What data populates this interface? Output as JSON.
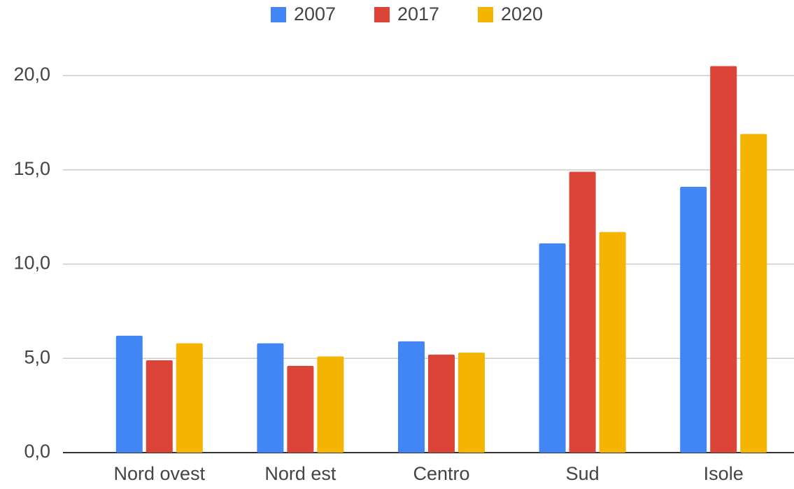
{
  "chart_data": {
    "type": "bar",
    "categories": [
      "Nord ovest",
      "Nord est",
      "Centro",
      "Sud",
      "Isole"
    ],
    "series": [
      {
        "name": "2007",
        "color": "#4285f4",
        "values": [
          6.2,
          5.8,
          5.9,
          11.1,
          14.1
        ]
      },
      {
        "name": "2017",
        "color": "#db4437",
        "values": [
          4.9,
          4.6,
          5.2,
          14.9,
          20.5
        ]
      },
      {
        "name": "2020",
        "color": "#f4b400",
        "values": [
          5.8,
          5.1,
          5.3,
          11.7,
          16.9
        ]
      }
    ],
    "ylim": [
      0,
      21
    ],
    "yticks": [
      {
        "value": 0,
        "label": "0,0"
      },
      {
        "value": 5,
        "label": "5,0"
      },
      {
        "value": 10,
        "label": "10,0"
      },
      {
        "value": 15,
        "label": "15,0"
      },
      {
        "value": 20,
        "label": "20,0"
      }
    ],
    "grid": true,
    "legend": "top"
  }
}
